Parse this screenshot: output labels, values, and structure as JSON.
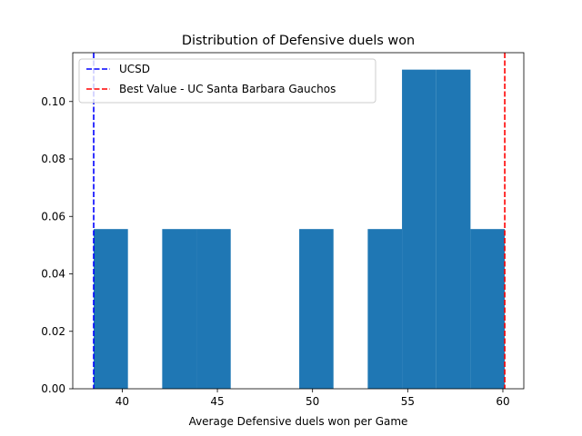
{
  "chart_data": {
    "type": "bar",
    "title": "Distribution of Defensive duels won",
    "xlabel": "Average Defensive duels won per Game",
    "ylabel": "",
    "xlim": [
      37.4,
      61.1
    ],
    "ylim": [
      0,
      0.117
    ],
    "grid": false,
    "legend_placement": "top-left",
    "bar_color": "#1f77b4",
    "x_ticks": [
      40,
      45,
      50,
      55,
      60
    ],
    "x_tick_labels": [
      "40",
      "45",
      "50",
      "55",
      "60"
    ],
    "y_ticks": [
      0.0,
      0.02,
      0.04,
      0.06,
      0.08,
      0.1
    ],
    "y_tick_labels": [
      "0.00",
      "0.02",
      "0.04",
      "0.06",
      "0.08",
      "0.10"
    ],
    "bins": [
      {
        "start": 38.5,
        "end": 40.3,
        "density": 0.0556
      },
      {
        "start": 40.3,
        "end": 42.1,
        "density": 0
      },
      {
        "start": 42.1,
        "end": 43.9,
        "density": 0.0556
      },
      {
        "start": 43.9,
        "end": 45.7,
        "density": 0.0556
      },
      {
        "start": 45.7,
        "end": 47.5,
        "density": 0
      },
      {
        "start": 47.5,
        "end": 49.3,
        "density": 0
      },
      {
        "start": 49.3,
        "end": 51.1,
        "density": 0.0556
      },
      {
        "start": 51.1,
        "end": 52.9,
        "density": 0
      },
      {
        "start": 52.9,
        "end": 54.7,
        "density": 0.0556
      },
      {
        "start": 54.7,
        "end": 56.5,
        "density": 0.1111
      },
      {
        "start": 56.5,
        "end": 58.3,
        "density": 0.1111
      },
      {
        "start": 58.3,
        "end": 60.1,
        "density": 0.0556
      }
    ],
    "reference_lines": [
      {
        "name": "UCSD",
        "x": 38.5,
        "color": "#0000ff",
        "style": "dashed"
      },
      {
        "name": "Best Value - UC Santa Barbara Gauchos",
        "x": 60.1,
        "color": "#ff0000",
        "style": "dashed"
      }
    ]
  }
}
